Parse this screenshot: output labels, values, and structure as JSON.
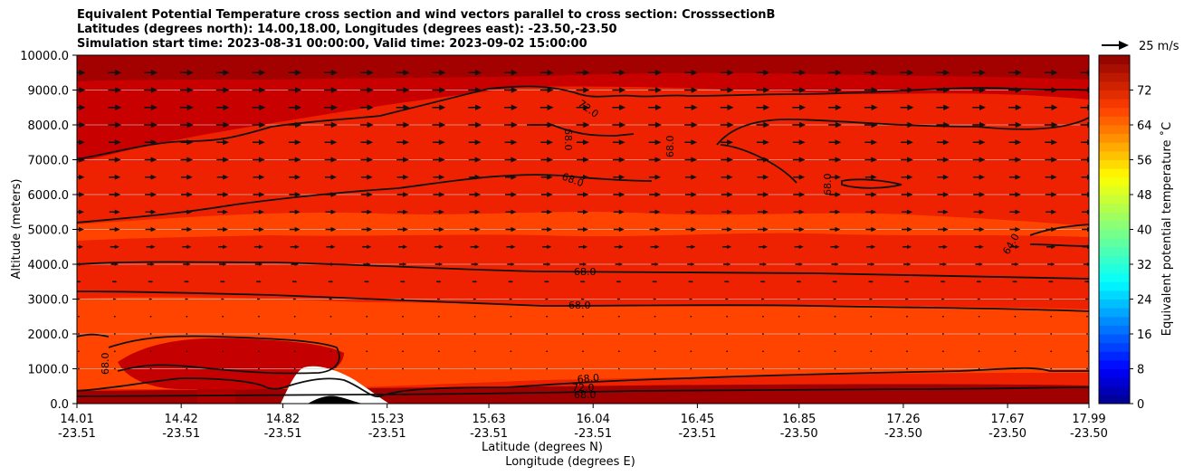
{
  "chart_data": {
    "type": "heatmap",
    "subtype": "filled-contour cross section with wind vectors",
    "title_lines": [
      "Equivalent Potential Temperature cross section and wind vectors parallel to cross section: CrosssectionB",
      "Latitudes (degrees north): 14.00,18.00, Longitudes (degrees east): -23.50,-23.50",
      "Simulation start time: 2023-08-31 00:00:00, Valid time: 2023-09-02 15:00:00"
    ],
    "ylabel": "Altitude (meters)",
    "xlabel_lat": "Latitude (degrees N)",
    "xlabel_lon": "Longitude (degrees E)",
    "ylim": [
      0,
      10000
    ],
    "y_ticks": [
      "0.0",
      "1000.0",
      "2000.0",
      "3000.0",
      "4000.0",
      "5000.0",
      "6000.0",
      "7000.0",
      "8000.0",
      "9000.0",
      "10000.0"
    ],
    "x_lat_ticks": [
      "14.01",
      "14.42",
      "14.82",
      "15.23",
      "15.63",
      "16.04",
      "16.45",
      "16.85",
      "17.26",
      "17.67",
      "17.99"
    ],
    "x_lon_ticks": [
      "-23.51",
      "-23.51",
      "-23.51",
      "-23.51",
      "-23.51",
      "-23.51",
      "-23.51",
      "-23.50",
      "-23.50",
      "-23.50",
      "-23.50"
    ],
    "colorbar": {
      "label": "Equivalent potential temperature ˚C",
      "range": [
        0,
        80
      ],
      "tick_labels": [
        "0",
        "8",
        "16",
        "24",
        "32",
        "40",
        "48",
        "56",
        "64",
        "72"
      ]
    },
    "quiver_key": "25 m/s",
    "contour_labels": [
      "72.0",
      "68.0",
      "68.0",
      "68.0",
      "68.0",
      "64.0",
      "68.0",
      "68.0",
      "68.0",
      "68.0",
      "72.0",
      "68.0"
    ],
    "theta_e_bands_by_altitude": [
      {
        "altitude_m": 0,
        "theta_e_C": 72
      },
      {
        "altitude_m": 400,
        "theta_e_C": 68
      },
      {
        "altitude_m": 1000,
        "theta_e_C": 66
      },
      {
        "altitude_m": 2000,
        "theta_e_C": 66
      },
      {
        "altitude_m": 3000,
        "theta_e_C": 67
      },
      {
        "altitude_m": 4000,
        "theta_e_C": 68
      },
      {
        "altitude_m": 5000,
        "theta_e_C": 67
      },
      {
        "altitude_m": 6000,
        "theta_e_C": 68
      },
      {
        "altitude_m": 7000,
        "theta_e_C": 69
      },
      {
        "altitude_m": 8000,
        "theta_e_C": 71
      },
      {
        "altitude_m": 9000,
        "theta_e_C": 73
      },
      {
        "altitude_m": 10000,
        "theta_e_C": 76
      }
    ],
    "wind_rows": [
      {
        "altitude_m": 9500,
        "speed_ms": 16
      },
      {
        "altitude_m": 9000,
        "speed_ms": 16
      },
      {
        "altitude_m": 8500,
        "speed_ms": 16
      },
      {
        "altitude_m": 8000,
        "speed_ms": 16
      },
      {
        "altitude_m": 7500,
        "speed_ms": 15
      },
      {
        "altitude_m": 7000,
        "speed_ms": 15
      },
      {
        "altitude_m": 6500,
        "speed_ms": 14
      },
      {
        "altitude_m": 6000,
        "speed_ms": 14
      },
      {
        "altitude_m": 5500,
        "speed_ms": 13
      },
      {
        "altitude_m": 5000,
        "speed_ms": 13
      },
      {
        "altitude_m": 4500,
        "speed_ms": 11
      },
      {
        "altitude_m": 4000,
        "speed_ms": 9
      },
      {
        "altitude_m": 3500,
        "speed_ms": 6
      },
      {
        "altitude_m": 3000,
        "speed_ms": 4
      },
      {
        "altitude_m": 2500,
        "speed_ms": 2
      },
      {
        "altitude_m": 2000,
        "speed_ms": 1
      },
      {
        "altitude_m": 1500,
        "speed_ms": 1
      },
      {
        "altitude_m": 1000,
        "speed_ms": 1
      }
    ],
    "wind_columns": 29
  }
}
